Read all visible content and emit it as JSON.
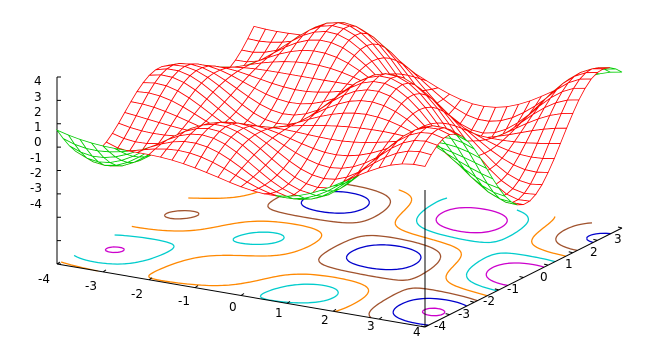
{
  "chart_data": {
    "type": "surface",
    "title": "",
    "xlabel": "",
    "ylabel": "",
    "zlabel": "",
    "x_range": [
      -4,
      4
    ],
    "y_range": [
      -4,
      4
    ],
    "z_range": [
      -4,
      4
    ],
    "x_ticks": [
      "-4",
      "-3",
      "-2",
      "-1",
      "0",
      "1",
      "2",
      "3",
      "4"
    ],
    "y_ticks": [
      "-4",
      "-3",
      "-2",
      "-1",
      "0",
      "1",
      "2",
      "3"
    ],
    "z_ticks": [
      "4",
      "3",
      "2",
      "1",
      "0",
      "-1",
      "-2",
      "-3",
      "-4"
    ],
    "surface": {
      "style": "wireframe mesh with hidden-line removal",
      "top_color": "#ff0000",
      "bottom_color": "#00cc00"
    },
    "base_contours": {
      "plane": "z=-4",
      "colors": [
        "#0000cc",
        "#cc00cc",
        "#00cccc",
        "#ff8800",
        "#a0522d"
      ]
    },
    "grid": false,
    "legend": "none"
  }
}
